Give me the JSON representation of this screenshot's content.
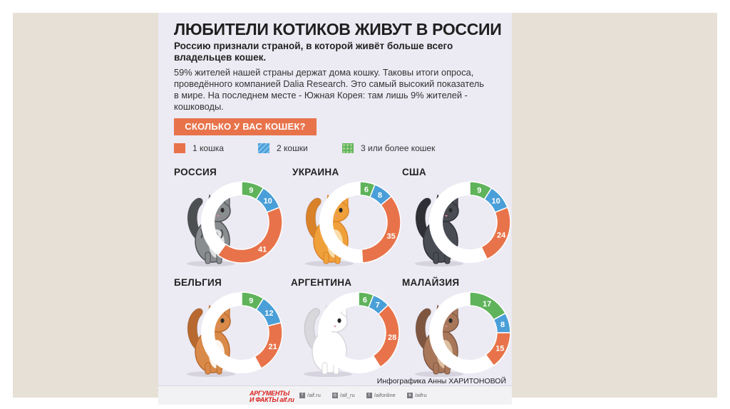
{
  "infographic": {
    "title": "ЛЮБИТЕЛИ КОТИКОВ ЖИВУТ В РОССИИ",
    "subtitle": "Россию признали страной, в которой живёт больше всего владельцев кошек.",
    "body": "59% жителей нашей страны держат дома кошку. Таковы итоги опроса, проведённого компанией Dalia Research. Это самый высокий показатель в мире. На последнем месте - Южная Корея: там лишь 9% жителей - кошководы.",
    "question": "СКОЛЬКО У ВАС КОШЕК?",
    "legend": [
      "1 кошка",
      "2 кошки",
      "3 или более кошек"
    ],
    "credit": "Инфографика Анны ХАРИТОНОВОЙ",
    "footer": {
      "logo_line1": "АРГУМЕНТЫ",
      "logo_line2": "И ФАКТЫ aif.ru",
      "links": [
        "/aif.ru",
        "/aif_ru",
        "/aifonline",
        "/aifru"
      ]
    }
  },
  "colors": {
    "one": "#e8734a",
    "two": "#4a9fd8",
    "three": "#5fb35a",
    "track": "#ffffff"
  },
  "chart_data": [
    {
      "type": "pie",
      "title": "РОССИЯ",
      "categories": [
        "1 кошка",
        "2 кошки",
        "3 или более кошек"
      ],
      "values": [
        41,
        10,
        9
      ]
    },
    {
      "type": "pie",
      "title": "УКРАИНА",
      "categories": [
        "1 кошка",
        "2 кошки",
        "3 или более кошек"
      ],
      "values": [
        35,
        8,
        6
      ]
    },
    {
      "type": "pie",
      "title": "США",
      "categories": [
        "1 кошка",
        "2 кошки",
        "3 или более кошек"
      ],
      "values": [
        24,
        10,
        9
      ]
    },
    {
      "type": "pie",
      "title": "БЕЛЬГИЯ",
      "categories": [
        "1 кошка",
        "2 кошки",
        "3 или более кошек"
      ],
      "values": [
        21,
        12,
        9
      ]
    },
    {
      "type": "pie",
      "title": "АРГЕНТИНА",
      "categories": [
        "1 кошка",
        "2 кошки",
        "3 или более кошек"
      ],
      "values": [
        28,
        7,
        6
      ]
    },
    {
      "type": "pie",
      "title": "МАЛАЙЗИЯ",
      "categories": [
        "1 кошка",
        "2 кошки",
        "3 или более кошек"
      ],
      "values": [
        15,
        8,
        17
      ]
    }
  ]
}
